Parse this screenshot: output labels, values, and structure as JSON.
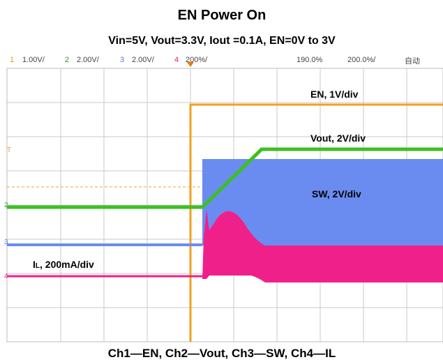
{
  "title": "EN Power On",
  "subtitle": "Vin=5V, Vout=3.3V, Iout =0.1A, EN=0V to 3V",
  "header": {
    "ch1": "1",
    "ch1_scale": "1.00V/",
    "ch2": "2",
    "ch2_scale": "2.00V/",
    "ch3": "3",
    "ch3_scale": "2.00V/",
    "ch4": "4",
    "ch4_scale": "200%/",
    "delay": "190.0%",
    "timebase": "200.0%/",
    "mode": "自动"
  },
  "markers": {
    "trigger": "T",
    "ch2": "2",
    "ch3": "3",
    "ch4": "4"
  },
  "annotations": {
    "en": "EN, 1V/div",
    "vout": "Vout, 2V/div",
    "sw": "SW, 2V/div",
    "il_main": "I",
    "il_sub": "L",
    "il_rest": ", 200mA/div"
  },
  "caption": "Ch1—EN, Ch2—Vout, Ch3—SW, Ch4—IL"
}
